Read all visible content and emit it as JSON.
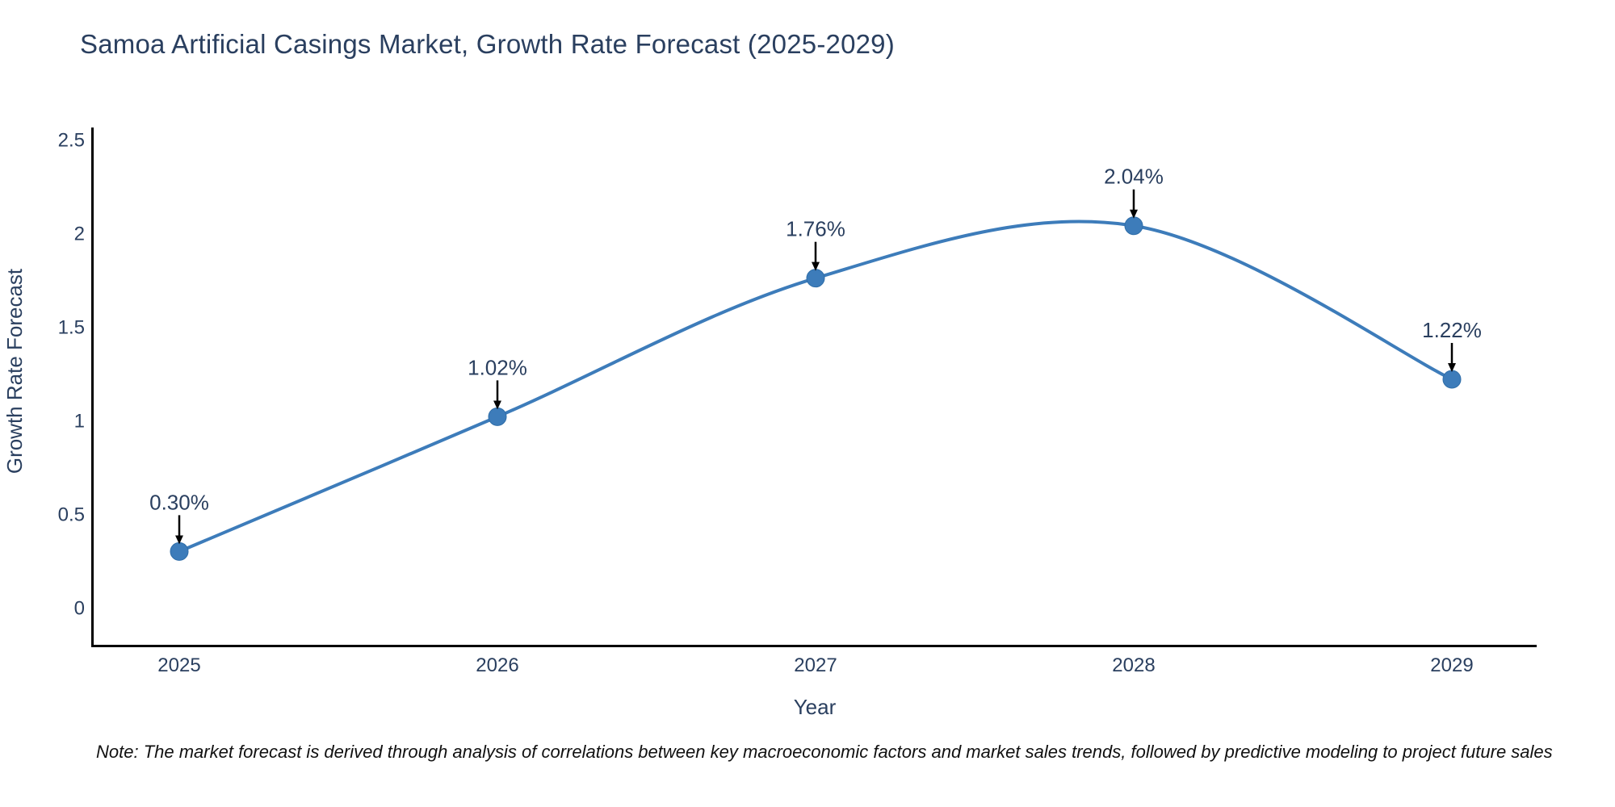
{
  "header": {
    "title": "Samoa Artificial Casings Market, Growth Rate Forecast (2025-2029)"
  },
  "footer": {
    "note": "Note: The market forecast is derived through analysis of correlations between key macroeconomic factors and market sales trends, followed by predictive modeling to project future sales"
  },
  "chart_data": {
    "type": "line",
    "line_shape": "spline",
    "title": "Samoa Artificial Casings Market, Growth Rate Forecast (2025-2029)",
    "xlabel": "Year",
    "ylabel": "Growth Rate Forecast",
    "x": [
      "2025",
      "2026",
      "2027",
      "2028",
      "2029"
    ],
    "y": [
      0.3,
      1.02,
      1.76,
      2.04,
      1.22
    ],
    "point_labels": [
      "0.30%",
      "1.02%",
      "1.76%",
      "2.04%",
      "1.22%"
    ],
    "ytick_labels": [
      "0",
      "0.5",
      "1",
      "1.5",
      "2",
      "2.5"
    ],
    "ytick_values": [
      0,
      0.5,
      1,
      1.5,
      2,
      2.5
    ],
    "ylim": [
      -0.2,
      2.56
    ],
    "grid": false,
    "legend": "none",
    "markers": true,
    "annotations_arrows": true
  },
  "colors": {
    "line": "#3d7cba",
    "marker": "#3d7cba",
    "marker_edge": "#2f6da8",
    "title_text": "#2a3f5f",
    "tick_text": "#2a3f5f",
    "axis_title_text": "#2a3f5f",
    "annotation_text": "#2a3f5f",
    "arrow": "#000000",
    "axis_line": "#000000",
    "note_text": "#111111",
    "background": "#ffffff"
  }
}
